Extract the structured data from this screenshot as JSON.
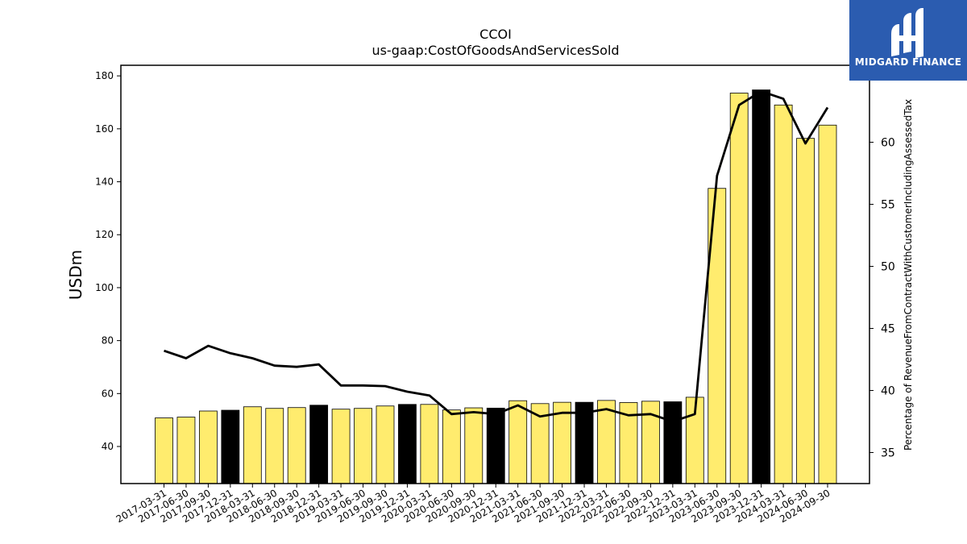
{
  "brand": {
    "name": "MIDGARD FINANCE",
    "bg_color": "#2b5cb0"
  },
  "chart_data": {
    "type": "bar",
    "title": "CCOI",
    "subtitle": "us-gaap:CostOfGoodsAndServicesSold",
    "ylabel": "USDm",
    "y2label": "Percentage of RevenueFromContractWithCustomerIncludingAssessedTax",
    "ylim": [
      26,
      184
    ],
    "y2lim": [
      32.5,
      66.2
    ],
    "yticks": [
      40,
      60,
      80,
      100,
      120,
      140,
      160,
      180
    ],
    "y2ticks": [
      35,
      40,
      45,
      50,
      55,
      60
    ],
    "bar_color": "#ffec6e",
    "highlight_color": "#000000",
    "line_color": "#000000",
    "grid": false,
    "legend": "none",
    "categories": [
      "2017-03-31",
      "2017-06-30",
      "2017-09-30",
      "2017-12-31",
      "2018-03-31",
      "2018-06-30",
      "2018-09-30",
      "2018-12-31",
      "2019-03-31",
      "2019-06-30",
      "2019-09-30",
      "2019-12-31",
      "2020-03-31",
      "2020-06-30",
      "2020-09-30",
      "2020-12-31",
      "2021-03-31",
      "2021-06-30",
      "2021-09-30",
      "2021-12-31",
      "2022-03-31",
      "2022-06-30",
      "2022-09-30",
      "2022-12-31",
      "2023-03-31",
      "2023-06-30",
      "2023-09-30",
      "2023-12-31",
      "2024-03-31",
      "2024-06-30",
      "2024-09-30"
    ],
    "series": [
      {
        "type": "bar",
        "axis": "left",
        "values": [
          50.8,
          51.1,
          53.4,
          53.7,
          55.0,
          54.4,
          54.7,
          55.6,
          54.1,
          54.4,
          55.3,
          55.9,
          55.9,
          53.8,
          54.6,
          54.5,
          57.3,
          56.2,
          56.7,
          56.7,
          57.4,
          56.6,
          57.1,
          56.9,
          58.6,
          137.5,
          173.5,
          174.7,
          169.0,
          156.4,
          161.4
        ],
        "highlight": [
          false,
          false,
          false,
          true,
          false,
          false,
          false,
          true,
          false,
          false,
          false,
          true,
          false,
          false,
          false,
          true,
          false,
          false,
          false,
          true,
          false,
          false,
          false,
          true,
          false,
          false,
          false,
          true,
          false,
          false,
          false
        ]
      },
      {
        "type": "line",
        "axis": "right",
        "values": [
          43.2,
          42.6,
          43.6,
          43.0,
          42.6,
          42.0,
          41.9,
          42.1,
          40.4,
          40.4,
          40.35,
          39.9,
          39.6,
          38.1,
          38.25,
          38.1,
          38.8,
          37.9,
          38.2,
          38.2,
          38.5,
          38.0,
          38.1,
          37.5,
          38.1,
          57.3,
          63.0,
          64.1,
          63.5,
          59.9,
          62.8
        ]
      }
    ]
  }
}
